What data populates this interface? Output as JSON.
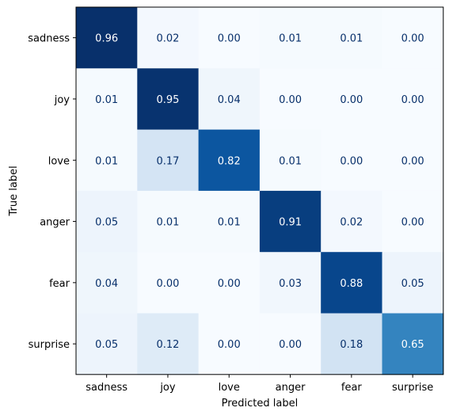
{
  "chart_data": {
    "type": "heatmap",
    "title": "",
    "xlabel": "Predicted label",
    "ylabel": "True label",
    "x_categories": [
      "sadness",
      "joy",
      "love",
      "anger",
      "fear",
      "surprise"
    ],
    "y_categories": [
      "sadness",
      "joy",
      "love",
      "anger",
      "fear",
      "surprise"
    ],
    "values": [
      [
        0.96,
        0.02,
        0.0,
        0.01,
        0.01,
        0.0
      ],
      [
        0.01,
        0.95,
        0.04,
        0.0,
        0.0,
        0.0
      ],
      [
        0.01,
        0.17,
        0.82,
        0.01,
        0.0,
        0.0
      ],
      [
        0.05,
        0.01,
        0.01,
        0.91,
        0.02,
        0.0
      ],
      [
        0.04,
        0.0,
        0.0,
        0.03,
        0.88,
        0.05
      ],
      [
        0.05,
        0.12,
        0.0,
        0.0,
        0.18,
        0.65
      ]
    ],
    "value_format": "0.00",
    "colormap": "Blues",
    "vmin": 0.0,
    "vmax": 0.96,
    "colorbar": false,
    "grid": false,
    "text_color_light": "#ffffff",
    "text_color_dark": "#08306b"
  }
}
